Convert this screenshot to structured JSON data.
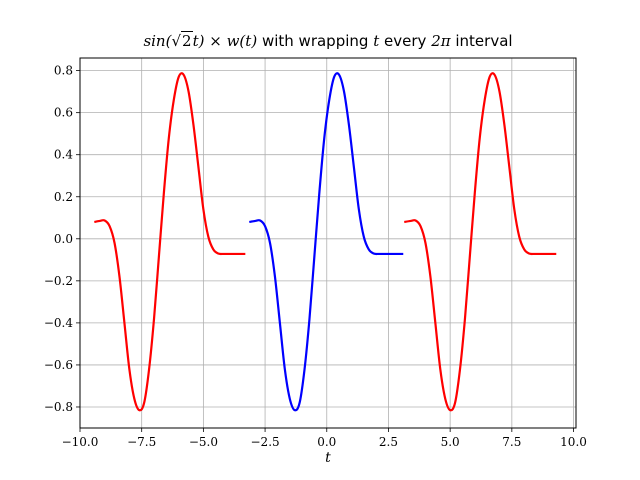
{
  "title": {
    "func": "sin(",
    "root": "√",
    "radicand": "2",
    "t_inner": "t",
    "close": ")",
    "times": "×",
    "wt": "w(t)",
    "with": "with wrapping",
    "t": "t",
    "every": "every",
    "twopi": "2π",
    "interval": "interval"
  },
  "colors": {
    "blue": "#0000ff",
    "red": "#ff0000",
    "grid": "#b0b0b0"
  },
  "chart_data": {
    "type": "line",
    "title": "sin(√2t) × w(t) with wrapping t every 2π interval",
    "xlabel": "t",
    "ylabel": "",
    "xlim": [
      -10.0,
      10.1
    ],
    "ylim": [
      -0.9,
      0.86
    ],
    "grid": true,
    "xticks": [
      -10.0,
      -7.5,
      -5.0,
      -2.5,
      0.0,
      2.5,
      5.0,
      7.5,
      10.0
    ],
    "xtick_labels": [
      "−10.0",
      "−7.5",
      "−5.0",
      "−2.5",
      "0.0",
      "2.5",
      "5.0",
      "7.5",
      "10.0"
    ],
    "yticks": [
      -0.8,
      -0.6,
      -0.4,
      -0.2,
      0.0,
      0.2,
      0.4,
      0.6,
      0.8
    ],
    "ytick_labels": [
      "−0.8",
      "−0.6",
      "−0.4",
      "−0.2",
      "0.0",
      "0.2",
      "0.4",
      "0.6",
      "0.8"
    ],
    "series": [
      {
        "color": "#ff0000",
        "x": [
          -9.42,
          -9.2,
          -9.0,
          -8.8,
          -8.6,
          -8.4,
          -8.2,
          -8.0,
          -7.8,
          -7.6,
          -7.4,
          -7.2,
          -7.0,
          -6.8,
          -6.6,
          -6.4,
          -6.2,
          -6.0,
          -5.8,
          -5.6,
          -5.4,
          -5.2,
          -5.0,
          -4.8,
          -4.6,
          -4.4,
          -4.2,
          -4.0,
          -3.8,
          -3.6,
          -3.3
        ],
        "y": [
          0.08,
          0.085,
          0.087,
          0.06,
          -0.02,
          -0.18,
          -0.4,
          -0.62,
          -0.76,
          -0.815,
          -0.78,
          -0.62,
          -0.38,
          -0.08,
          0.22,
          0.48,
          0.66,
          0.77,
          0.78,
          0.7,
          0.54,
          0.34,
          0.14,
          0.01,
          -0.05,
          -0.07,
          -0.072,
          -0.072,
          -0.072,
          -0.072,
          -0.072
        ]
      },
      {
        "color": "#0000ff",
        "x": [
          -3.14,
          -2.9,
          -2.7,
          -2.5,
          -2.3,
          -2.1,
          -1.9,
          -1.7,
          -1.5,
          -1.3,
          -1.1,
          -0.9,
          -0.7,
          -0.5,
          -0.3,
          -0.1,
          0.1,
          0.3,
          0.5,
          0.7,
          0.9,
          1.1,
          1.3,
          1.5,
          1.7,
          1.9,
          2.1,
          2.3,
          2.5,
          2.8,
          3.1
        ],
        "y": [
          0.08,
          0.085,
          0.087,
          0.06,
          -0.02,
          -0.18,
          -0.4,
          -0.62,
          -0.76,
          -0.815,
          -0.78,
          -0.62,
          -0.38,
          -0.08,
          0.22,
          0.48,
          0.66,
          0.77,
          0.78,
          0.7,
          0.54,
          0.34,
          0.14,
          0.01,
          -0.05,
          -0.07,
          -0.072,
          -0.072,
          -0.072,
          -0.072,
          -0.072
        ]
      },
      {
        "color": "#ff0000",
        "x": [
          3.14,
          3.4,
          3.6,
          3.8,
          4.0,
          4.2,
          4.4,
          4.6,
          4.8,
          5.0,
          5.2,
          5.4,
          5.6,
          5.8,
          6.0,
          6.2,
          6.4,
          6.6,
          6.8,
          7.0,
          7.2,
          7.4,
          7.6,
          7.8,
          8.0,
          8.2,
          8.4,
          8.6,
          8.8,
          9.0,
          9.3
        ],
        "y": [
          0.08,
          0.085,
          0.087,
          0.06,
          -0.02,
          -0.18,
          -0.4,
          -0.62,
          -0.76,
          -0.815,
          -0.78,
          -0.62,
          -0.38,
          -0.08,
          0.22,
          0.48,
          0.66,
          0.77,
          0.78,
          0.7,
          0.54,
          0.34,
          0.14,
          0.01,
          -0.05,
          -0.07,
          -0.072,
          -0.072,
          -0.072,
          -0.072,
          -0.072
        ]
      }
    ]
  }
}
